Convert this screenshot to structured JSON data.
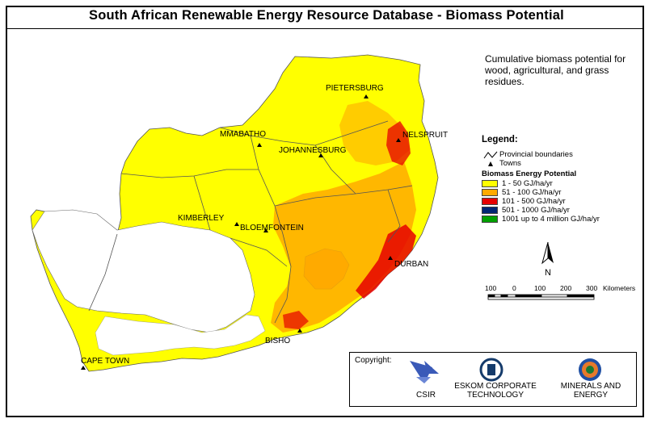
{
  "title": "South African Renewable Energy Resource Database - Biomass Potential",
  "description": "Cumulative biomass potential for wood, agricultural, and grass residues.",
  "legend": {
    "title": "Legend:",
    "provincial_boundaries": "Provincial boundaries",
    "towns": "Towns",
    "classes_title": "Biomass Energy Potential",
    "classes": [
      {
        "label": "1 - 50 GJ/ha/yr",
        "color": "#ffff00"
      },
      {
        "label": "51 - 100 GJ/ha/yr",
        "color": "#ffaa00"
      },
      {
        "label": "101 - 500 GJ/ha/yr",
        "color": "#e60000"
      },
      {
        "label": "501 - 1000 GJ/ha/yr",
        "color": "#002673"
      },
      {
        "label": "1001 up to 4 million GJ/ha/yr",
        "color": "#00a000"
      }
    ]
  },
  "north_label": "N",
  "scale_bar": {
    "ticks": [
      "100",
      "0",
      "100",
      "200",
      "300"
    ],
    "unit": "Kilometers"
  },
  "towns": {
    "pietersburg": "PIETERSBURG",
    "nelspruit": "NELSPRUIT",
    "mmabatho": "MMABATHO",
    "johannesburg": "JOHANNESBURG",
    "kimberley": "KIMBERLEY",
    "bloemfontein": "BLOEMFONTEIN",
    "durban": "DURBAN",
    "bisho": "BISHO",
    "cape_town": "CAPE TOWN"
  },
  "copyright": {
    "label": "Copyright:",
    "orgs": [
      "CSIR",
      "ESKOM CORPORATE",
      "TECHNOLOGY",
      "MINERALS AND",
      "ENERGY"
    ]
  },
  "colors": {
    "yellow": "#ffff00",
    "orange": "#ffaa00",
    "red": "#e60000",
    "white_area": "#ffffff"
  }
}
